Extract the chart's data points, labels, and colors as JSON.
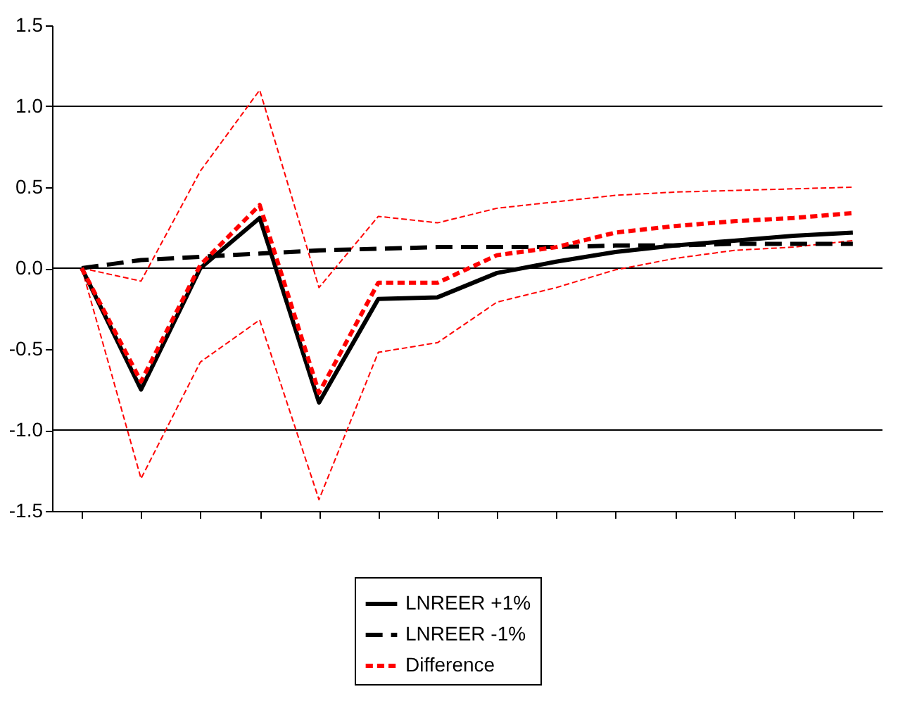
{
  "chart_data": {
    "type": "line",
    "categories": [
      null,
      null,
      null,
      null,
      null,
      null,
      null,
      null,
      null,
      null,
      null,
      null,
      null,
      null
    ],
    "ylim": [
      -1.5,
      1.5
    ],
    "yticks": [
      -1.5,
      {
        "value": -1,
        "label": "-1.0"
      },
      -0.5,
      {
        "value": 0,
        "label": "0.0"
      },
      0.5,
      {
        "value": 1,
        "label": "1.0"
      },
      1.5
    ],
    "grid": false,
    "tick_labels": "y",
    "legend": "bottom",
    "ref_lines": [
      {
        "axis": "y",
        "value": 1.0,
        "color": "#000000"
      },
      {
        "axis": "y",
        "value": 0.0,
        "color": "#000000"
      },
      {
        "axis": "y",
        "value": -1.0,
        "color": "#000000"
      }
    ],
    "series": [
      {
        "name": "LNREER +1%",
        "color": "#000000",
        "line_style": "solid",
        "values": [
          0,
          -0.75,
          0.0,
          0.31,
          -0.83,
          -0.19,
          -0.18,
          -0.03,
          0.04,
          0.1,
          0.14,
          0.17,
          0.2,
          0.22
        ]
      },
      {
        "name": "LNREER -1%",
        "color": "#000000",
        "line_style": "dashed",
        "values": [
          0,
          0.05,
          0.07,
          0.09,
          0.11,
          0.12,
          0.13,
          0.13,
          0.13,
          0.14,
          0.14,
          0.15,
          0.15,
          0.15
        ]
      },
      {
        "name": "Difference",
        "color": "#ff0000",
        "line_style": "dotted",
        "values": [
          0,
          -0.7,
          0.02,
          0.39,
          -0.77,
          -0.09,
          -0.09,
          0.08,
          0.13,
          0.22,
          0.26,
          0.29,
          0.31,
          0.34
        ]
      },
      {
        "color": "#ff0000",
        "line_style": "dashed",
        "values": [
          0,
          -1.3,
          -0.58,
          -0.32,
          -1.43,
          -0.52,
          -0.46,
          -0.21,
          -0.12,
          -0.01,
          0.06,
          0.11,
          0.13,
          0.17
        ]
      },
      {
        "color": "#ff0000",
        "line_style": "dashed",
        "values": [
          0,
          -0.08,
          0.6,
          1.1,
          -0.12,
          0.32,
          0.28,
          0.37,
          0.41,
          0.45,
          0.47,
          0.48,
          0.49,
          0.5
        ]
      }
    ]
  }
}
